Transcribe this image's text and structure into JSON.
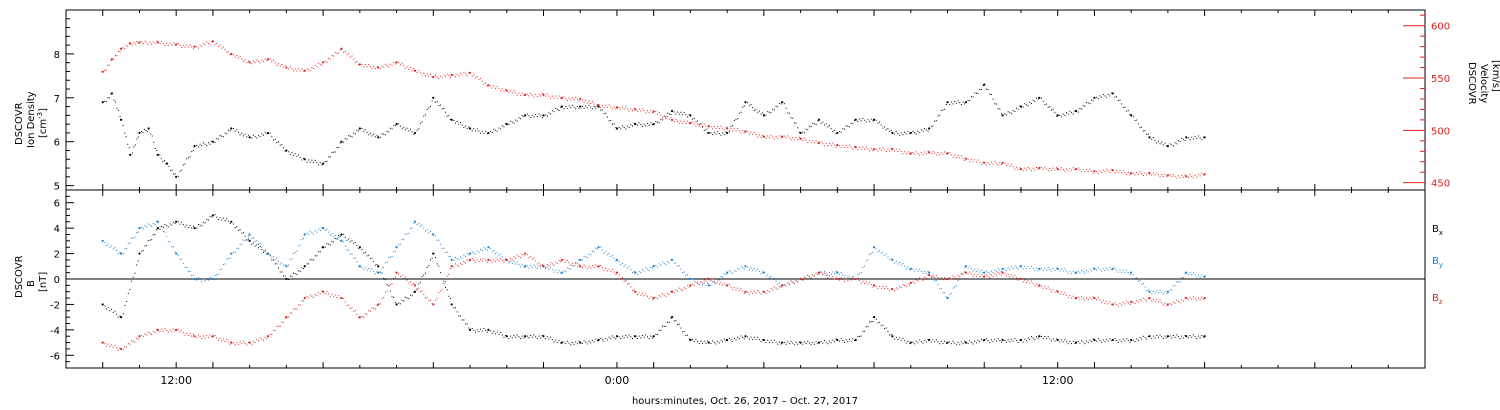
{
  "chart_data": [
    {
      "type": "scatter",
      "panel": "top",
      "left_axis": {
        "label_lines": [
          "DSCOVR",
          "Ion Density"
        ],
        "unit_base": "[cm",
        "unit_sup": "-3",
        "unit_end": "]",
        "ylim": [
          4.9,
          9.0
        ],
        "ticks": [
          "5",
          "6",
          "7",
          "8"
        ],
        "color": "#000000"
      },
      "right_axis": {
        "label_lines": [
          "DSCOVR",
          "Velocity"
        ],
        "unit": "[km/s]",
        "ylim": [
          443,
          615
        ],
        "ticks": [
          "450",
          "500",
          "550",
          "600"
        ],
        "color": "#e0201b"
      },
      "series": [
        {
          "axis": "left",
          "color": "#000000",
          "x": [
            0,
            0.25,
            0.5,
            0.75,
            1.0,
            1.25,
            1.5,
            1.75,
            2.0,
            2.5,
            3.0,
            3.5,
            4.0,
            4.5,
            5.0,
            5.5,
            6.0,
            6.5,
            7.0,
            7.5,
            8.0,
            8.5,
            9.0,
            9.5,
            10.0,
            10.5,
            11.0,
            11.5,
            12.0,
            12.5,
            13.0,
            13.5,
            14.0,
            14.5,
            15.0,
            15.5,
            16.0,
            16.5,
            17.0,
            17.5,
            18.0,
            18.5,
            19.0,
            19.5,
            20.0,
            20.5,
            21.0,
            21.5,
            22.0,
            22.5,
            23.0,
            23.5,
            24.0,
            24.5,
            25.0,
            25.5,
            26.0,
            26.5,
            27.0,
            27.5,
            28.0,
            28.5,
            29.0,
            29.5,
            30.0
          ],
          "values": [
            6.9,
            7.1,
            6.5,
            5.7,
            6.2,
            6.3,
            5.7,
            5.5,
            5.2,
            5.9,
            6.0,
            6.3,
            6.1,
            6.2,
            5.8,
            5.6,
            5.5,
            6.0,
            6.3,
            6.1,
            6.4,
            6.2,
            7.0,
            6.5,
            6.3,
            6.2,
            6.4,
            6.6,
            6.6,
            6.8,
            6.8,
            6.8,
            6.3,
            6.4,
            6.4,
            6.7,
            6.6,
            6.2,
            6.2,
            6.9,
            6.6,
            6.9,
            6.2,
            6.5,
            6.2,
            6.5,
            6.5,
            6.2,
            6.2,
            6.3,
            6.9,
            6.9,
            7.3,
            6.6,
            6.8,
            7.0,
            6.6,
            6.7,
            7.0,
            7.1,
            6.6,
            6.1,
            5.9,
            6.1,
            6.1
          ]
        },
        {
          "axis": "right",
          "color": "#e0201b",
          "x": [
            0,
            0.25,
            0.5,
            0.75,
            1.0,
            1.5,
            2.0,
            2.5,
            3.0,
            3.5,
            4.0,
            4.5,
            5.0,
            5.5,
            6.0,
            6.5,
            7.0,
            7.5,
            8.0,
            8.5,
            9.0,
            9.5,
            10.0,
            10.5,
            11.0,
            11.5,
            12.0,
            12.5,
            13.0,
            13.5,
            14.0,
            14.5,
            15.0,
            15.5,
            16.0,
            16.5,
            17.0,
            17.5,
            18.0,
            18.5,
            19.0,
            19.5,
            20.0,
            20.5,
            21.0,
            21.5,
            22.0,
            22.5,
            23.0,
            23.5,
            24.0,
            24.5,
            25.0,
            25.5,
            26.0,
            26.5,
            27.0,
            27.5,
            28.0,
            28.5,
            29.0,
            29.5,
            30.0
          ],
          "values": [
            556,
            568,
            578,
            583,
            584,
            584,
            582,
            580,
            585,
            573,
            565,
            568,
            560,
            557,
            565,
            578,
            563,
            560,
            565,
            557,
            551,
            553,
            555,
            543,
            538,
            534,
            534,
            531,
            530,
            524,
            522,
            520,
            518,
            510,
            507,
            504,
            502,
            499,
            494,
            494,
            492,
            488,
            486,
            484,
            482,
            482,
            478,
            479,
            478,
            473,
            469,
            469,
            463,
            464,
            463,
            463,
            461,
            462,
            459,
            459,
            457,
            456,
            458
          ]
        }
      ]
    },
    {
      "type": "scatter",
      "panel": "bottom",
      "left_axis": {
        "label_lines": [
          "DSCOVR",
          "B"
        ],
        "unit": "[nT]",
        "ylim": [
          -7,
          7
        ],
        "ticks": [
          "-6",
          "-4",
          "-2",
          "0",
          "2",
          "4",
          "6"
        ],
        "color": "#000000"
      },
      "legend_placement": "right",
      "series": [
        {
          "name_base": "B",
          "name_sub": "x",
          "color": "#000000",
          "x": [
            0,
            0.5,
            1.0,
            1.5,
            2.0,
            2.5,
            3.0,
            3.5,
            4.0,
            4.5,
            5.0,
            5.5,
            6.0,
            6.5,
            7.0,
            7.5,
            8.0,
            8.5,
            9.0,
            9.5,
            10.0,
            10.5,
            11.0,
            11.5,
            12.0,
            12.5,
            13.0,
            13.5,
            14.0,
            14.5,
            15.0,
            15.5,
            16.0,
            16.5,
            17.0,
            17.5,
            18.0,
            18.5,
            19.0,
            19.5,
            20.0,
            20.5,
            21.0,
            21.5,
            22.0,
            22.5,
            23.0,
            23.5,
            24.0,
            24.5,
            25.0,
            25.5,
            26.0,
            26.5,
            27.0,
            27.5,
            28.0,
            28.5,
            29.0,
            29.5,
            30.0
          ],
          "values": [
            -2.0,
            -3.0,
            2.0,
            4.0,
            4.5,
            4.0,
            5.0,
            4.5,
            3.0,
            2.0,
            0.0,
            1.0,
            2.5,
            3.5,
            2.5,
            1.0,
            -2.0,
            -1.0,
            2.0,
            -2.0,
            -4.0,
            -4.0,
            -4.5,
            -4.5,
            -4.5,
            -5.0,
            -5.0,
            -4.8,
            -4.5,
            -4.5,
            -4.5,
            -3.0,
            -4.8,
            -5.0,
            -4.8,
            -4.5,
            -4.8,
            -5.0,
            -5.0,
            -5.0,
            -4.8,
            -4.8,
            -3.0,
            -4.5,
            -5.0,
            -4.8,
            -5.0,
            -5.0,
            -4.8,
            -4.8,
            -4.8,
            -4.5,
            -4.8,
            -5.0,
            -4.8,
            -4.8,
            -4.8,
            -4.5,
            -4.5,
            -4.5,
            -4.5
          ]
        },
        {
          "name_base": "B",
          "name_sub": "y",
          "color": "#1a7fd4",
          "x": [
            0,
            0.5,
            1.0,
            1.5,
            2.0,
            2.5,
            3.0,
            3.5,
            4.0,
            4.5,
            5.0,
            5.5,
            6.0,
            6.5,
            7.0,
            7.5,
            8.0,
            8.5,
            9.0,
            9.5,
            10.0,
            10.5,
            11.0,
            11.5,
            12.0,
            12.5,
            13.0,
            13.5,
            14.0,
            14.5,
            15.0,
            15.5,
            16.0,
            16.5,
            17.0,
            17.5,
            18.0,
            18.5,
            19.0,
            19.5,
            20.0,
            20.5,
            21.0,
            21.5,
            22.0,
            22.5,
            23.0,
            23.5,
            24.0,
            24.5,
            25.0,
            25.5,
            26.0,
            26.5,
            27.0,
            27.5,
            28.0,
            28.5,
            29.0,
            29.5,
            30.0
          ],
          "values": [
            3.0,
            2.0,
            4.0,
            4.5,
            2.0,
            0.0,
            0.0,
            2.0,
            3.5,
            2.0,
            1.0,
            3.5,
            4.0,
            3.0,
            1.0,
            0.5,
            2.5,
            4.5,
            3.5,
            1.5,
            2.0,
            2.5,
            1.5,
            1.0,
            1.0,
            0.5,
            1.5,
            2.5,
            1.5,
            0.5,
            1.0,
            1.5,
            0.0,
            -0.5,
            0.5,
            1.0,
            0.5,
            -0.5,
            0.0,
            0.5,
            0.5,
            0.0,
            2.5,
            1.5,
            0.8,
            0.5,
            -1.5,
            1.0,
            0.5,
            0.8,
            1.0,
            0.8,
            0.8,
            0.5,
            0.8,
            0.8,
            0.5,
            -1.0,
            -1.0,
            0.5,
            0.2
          ]
        },
        {
          "name_base": "B",
          "name_sub": "z",
          "color": "#e0201b",
          "x": [
            0,
            0.5,
            1.0,
            1.5,
            2.0,
            2.5,
            3.0,
            3.5,
            4.0,
            4.5,
            5.0,
            5.5,
            6.0,
            6.5,
            7.0,
            7.5,
            8.0,
            8.5,
            9.0,
            9.5,
            10.0,
            10.5,
            11.0,
            11.5,
            12.0,
            12.5,
            13.0,
            13.5,
            14.0,
            14.5,
            15.0,
            15.5,
            16.0,
            16.5,
            17.0,
            17.5,
            18.0,
            18.5,
            19.0,
            19.5,
            20.0,
            20.5,
            21.0,
            21.5,
            22.0,
            22.5,
            23.0,
            23.5,
            24.0,
            24.5,
            25.0,
            25.5,
            26.0,
            26.5,
            27.0,
            27.5,
            28.0,
            28.5,
            29.0,
            29.5,
            30.0
          ],
          "values": [
            -5.0,
            -5.5,
            -4.5,
            -4.0,
            -4.0,
            -4.5,
            -4.5,
            -5.0,
            -5.0,
            -4.5,
            -3.0,
            -1.5,
            -1.0,
            -1.5,
            -3.0,
            -2.0,
            0.5,
            -0.5,
            -2.0,
            1.0,
            1.5,
            1.5,
            1.5,
            2.0,
            1.0,
            1.5,
            1.0,
            1.0,
            0.5,
            -1.0,
            -1.5,
            -1.0,
            -0.5,
            0.0,
            -0.5,
            -1.0,
            -1.0,
            -0.5,
            0.0,
            0.5,
            0.0,
            0.0,
            -0.5,
            -0.8,
            -0.3,
            0.3,
            0.0,
            0.5,
            0.2,
            0.5,
            0.0,
            -0.5,
            -1.0,
            -1.5,
            -1.5,
            -2.0,
            -1.8,
            -1.5,
            -2.0,
            -1.5,
            -1.5
          ]
        }
      ]
    }
  ],
  "x_axis": {
    "tick_labels": [
      {
        "label": "12:00",
        "hour": 2
      },
      {
        "label": "0:00",
        "hour": 14
      },
      {
        "label": "12:00",
        "hour": 26
      }
    ],
    "title": "hours:minutes, Oct. 26, 2017 – Oct. 27, 2017"
  }
}
